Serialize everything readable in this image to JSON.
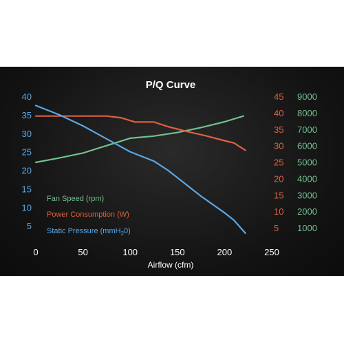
{
  "chart_data": {
    "type": "line",
    "title": "P/Q Curve",
    "xlabel": "Airflow (cfm)",
    "xlim": [
      0,
      250
    ],
    "x_ticks": [
      "0",
      "50",
      "100",
      "150",
      "200",
      "250"
    ],
    "axes": {
      "left": {
        "ylim": [
          0,
          40
        ],
        "ticks": [
          "5",
          "10",
          "15",
          "20",
          "25",
          "30",
          "35",
          "40"
        ],
        "color": "#5aa7e6"
      },
      "right1": {
        "ylim": [
          0,
          45
        ],
        "ticks": [
          "5",
          "10",
          "15",
          "20",
          "25",
          "30",
          "35",
          "40",
          "45"
        ],
        "color": "#e0603e"
      },
      "right2": {
        "ylim": [
          0,
          9000
        ],
        "ticks": [
          "1000",
          "2000",
          "3000",
          "4000",
          "5000",
          "6000",
          "7000",
          "8000",
          "9000"
        ],
        "color": "#72c08e"
      }
    },
    "legend": [
      {
        "text_before": "Fan Speed (rpm)",
        "sub": "",
        "text_after": ""
      },
      {
        "text_before": "Power Consumption (W)",
        "sub": "",
        "text_after": ""
      },
      {
        "text_before": "Static Pressure (mmH",
        "sub": "2",
        "text_after": "0)"
      }
    ],
    "series": [
      {
        "name": "Fan Speed (rpm)",
        "axis": "right2",
        "color": "#72c08e",
        "points": [
          [
            0,
            4980
          ],
          [
            25,
            5250
          ],
          [
            50,
            5550
          ],
          [
            75,
            6000
          ],
          [
            100,
            6450
          ],
          [
            125,
            6580
          ],
          [
            150,
            6800
          ],
          [
            175,
            7100
          ],
          [
            200,
            7450
          ],
          [
            220,
            7800
          ]
        ]
      },
      {
        "name": "Power Consumption (W)",
        "axis": "right1",
        "color": "#e0603e",
        "points": [
          [
            0,
            39
          ],
          [
            25,
            39
          ],
          [
            50,
            39
          ],
          [
            75,
            39
          ],
          [
            90,
            38.5
          ],
          [
            105,
            37.2
          ],
          [
            125,
            37.2
          ],
          [
            140,
            35.8
          ],
          [
            160,
            34.3
          ],
          [
            180,
            33
          ],
          [
            200,
            31.5
          ],
          [
            210,
            30.8
          ],
          [
            222,
            28.6
          ]
        ]
      },
      {
        "name": "Static Pressure (mmH2O)",
        "axis": "left",
        "color": "#5aa7e6",
        "points": [
          [
            0,
            37.5
          ],
          [
            25,
            35
          ],
          [
            50,
            32
          ],
          [
            75,
            28.5
          ],
          [
            100,
            25
          ],
          [
            125,
            22.5
          ],
          [
            140,
            20
          ],
          [
            155,
            17
          ],
          [
            175,
            13
          ],
          [
            200,
            8.5
          ],
          [
            210,
            6.5
          ],
          [
            222,
            3
          ]
        ]
      }
    ]
  }
}
